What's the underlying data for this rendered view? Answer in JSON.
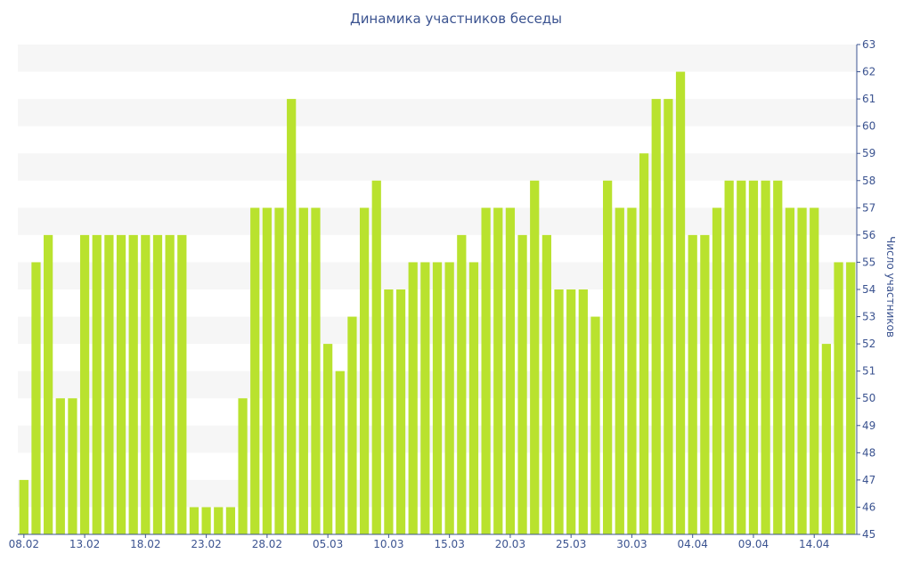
{
  "chart_data": {
    "type": "bar",
    "title": "Динамика участников беседы",
    "ylabel": "Число участников",
    "xlabel": "",
    "ylim": [
      45,
      63
    ],
    "y_axis_side": "right",
    "grid": "horizontal bands",
    "bar_color": "#b9e22e",
    "band_color": "#f6f6f6",
    "text_color": "#3b5390",
    "categories": [
      "08.02",
      "09.02",
      "10.02",
      "11.02",
      "12.02",
      "13.02",
      "14.02",
      "15.02",
      "16.02",
      "17.02",
      "18.02",
      "19.02",
      "20.02",
      "21.02",
      "22.02",
      "23.02",
      "24.02",
      "25.02",
      "26.02",
      "27.02",
      "28.02",
      "01.03",
      "02.03",
      "03.03",
      "04.03",
      "05.03",
      "06.03",
      "07.03",
      "08.03",
      "09.03",
      "10.03",
      "11.03",
      "12.03",
      "13.03",
      "14.03",
      "15.03",
      "16.03",
      "17.03",
      "18.03",
      "19.03",
      "20.03",
      "21.03",
      "22.03",
      "23.03",
      "24.03",
      "25.03",
      "26.03",
      "27.03",
      "28.03",
      "29.03",
      "30.03",
      "31.03",
      "01.04",
      "02.04",
      "03.04",
      "04.04",
      "05.04",
      "06.04",
      "07.04",
      "08.04",
      "09.04",
      "10.04",
      "11.04",
      "12.04",
      "13.04",
      "14.04",
      "15.04",
      "16.04",
      "17.04"
    ],
    "values": [
      47,
      55,
      56,
      50,
      50,
      56,
      56,
      56,
      56,
      56,
      56,
      56,
      56,
      56,
      46,
      46,
      46,
      46,
      50,
      57,
      57,
      57,
      61,
      57,
      57,
      52,
      51,
      53,
      57,
      58,
      54,
      54,
      55,
      55,
      55,
      55,
      56,
      55,
      57,
      57,
      57,
      56,
      58,
      56,
      54,
      54,
      54,
      53,
      58,
      57,
      57,
      59,
      61,
      61,
      62,
      56,
      56,
      57,
      58,
      58,
      58,
      58,
      58,
      57,
      57,
      57,
      52,
      55,
      55
    ],
    "x_tick_labels": [
      "08.02",
      "13.02",
      "18.02",
      "23.02",
      "28.02",
      "05.03",
      "10.03",
      "15.03",
      "20.03",
      "25.03",
      "30.03",
      "04.04",
      "09.04",
      "14.04"
    ],
    "y_tick_labels": [
      "45",
      "46",
      "47",
      "48",
      "49",
      "50",
      "51",
      "52",
      "53",
      "54",
      "55",
      "56",
      "57",
      "58",
      "59",
      "60",
      "61",
      "62",
      "63"
    ]
  }
}
